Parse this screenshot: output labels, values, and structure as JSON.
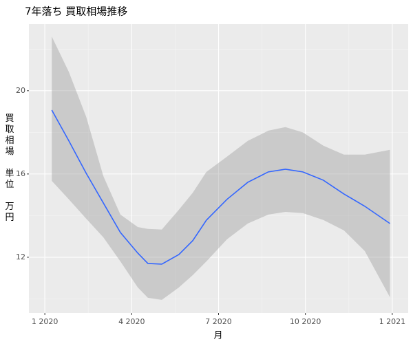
{
  "chart_data": {
    "type": "line",
    "title": "7年落ち 買取相場推移",
    "x_label": "月",
    "y_label": "買取相場　単位　万円",
    "x": [
      1.24,
      1.83,
      2.43,
      3.02,
      3.61,
      4.21,
      4.56,
      5.04,
      5.63,
      6.11,
      6.58,
      7.29,
      8.01,
      8.72,
      9.31,
      9.91,
      10.62,
      11.33,
      12.05,
      12.92
    ],
    "values": [
      19.07,
      17.59,
      16.03,
      14.61,
      13.19,
      12.2,
      11.7,
      11.67,
      12.13,
      12.8,
      13.78,
      14.78,
      15.6,
      16.1,
      16.23,
      16.1,
      15.7,
      15.04,
      14.45,
      13.62
    ],
    "upper": [
      22.6,
      20.9,
      18.74,
      15.9,
      14.05,
      13.45,
      13.36,
      13.33,
      14.28,
      15.1,
      16.1,
      16.83,
      17.59,
      18.08,
      18.25,
      18.0,
      17.36,
      16.93,
      16.93,
      17.16
    ],
    "lower": [
      15.67,
      14.78,
      13.85,
      12.96,
      11.8,
      10.55,
      10.05,
      9.95,
      10.55,
      11.14,
      11.8,
      12.86,
      13.62,
      14.05,
      14.18,
      14.12,
      13.79,
      13.29,
      12.3,
      10.08
    ],
    "color": "#3366ff",
    "band_color": "#999999",
    "xlim": [
      0.45,
      13.55
    ],
    "xticks": [
      {
        "value": 1,
        "label": "1 2020"
      },
      {
        "value": 4,
        "label": "4 2020"
      },
      {
        "value": 7,
        "label": "7 2020"
      },
      {
        "value": 10,
        "label": "10 2020"
      },
      {
        "value": 13,
        "label": "1 2021"
      }
    ],
    "ylim": [
      9.32,
      23.2
    ],
    "yticks": [
      12,
      16,
      20
    ],
    "grid": true
  }
}
